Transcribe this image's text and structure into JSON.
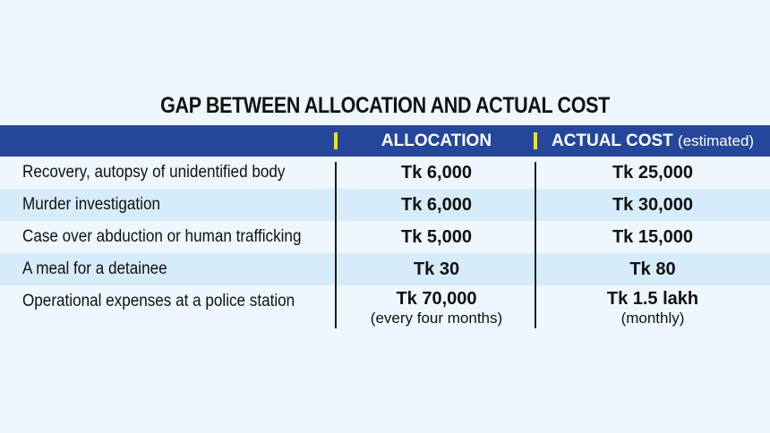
{
  "chart_data": {
    "type": "table",
    "title": "GAP BETWEEN ALLOCATION AND ACTUAL COST",
    "columns": [
      {
        "label": "ALLOCATION",
        "note": ""
      },
      {
        "label": "ACTUAL COST",
        "note": "(estimated)"
      }
    ],
    "rows": [
      {
        "label": "Recovery, autopsy of unidentified body",
        "allocation": "Tk 6,000",
        "allocation_note": "",
        "actual": "Tk 25,000",
        "actual_note": ""
      },
      {
        "label": "Murder investigation",
        "allocation": "Tk 6,000",
        "allocation_note": "",
        "actual": "Tk 30,000",
        "actual_note": ""
      },
      {
        "label": "Case over abduction or human trafficking",
        "allocation": "Tk 5,000",
        "allocation_note": "",
        "actual": "Tk 15,000",
        "actual_note": ""
      },
      {
        "label": "A meal for a detainee",
        "allocation": "Tk 30",
        "allocation_note": "",
        "actual": "Tk 80",
        "actual_note": ""
      },
      {
        "label": "Operational expenses at a police station",
        "allocation": "Tk 70,000",
        "allocation_note": "(every four months)",
        "actual": "Tk 1.5 lakh",
        "actual_note": "(monthly)"
      }
    ]
  },
  "colors": {
    "background": "#eef7fd",
    "header_bar": "#24479b",
    "accent_mark": "#f2e600",
    "row_shade": "#d7ecfa",
    "text": "#111111"
  }
}
